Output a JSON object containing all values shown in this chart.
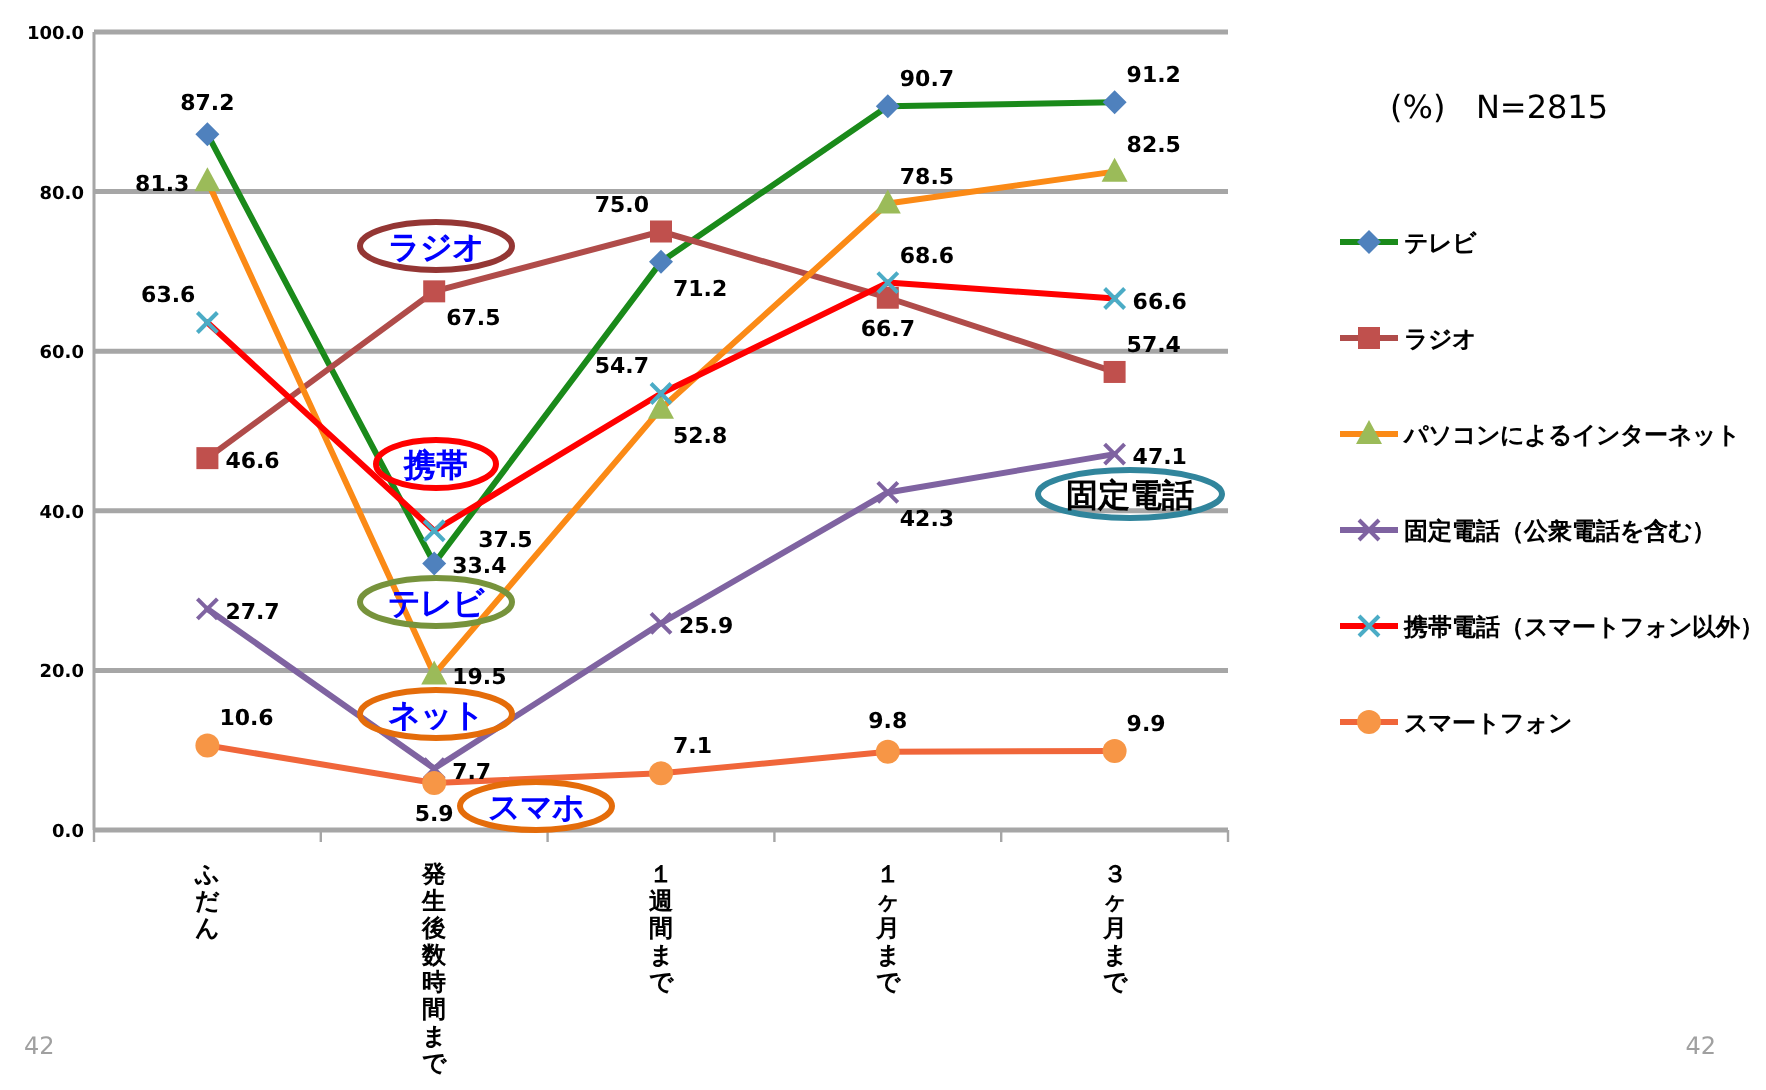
{
  "chart_data": {
    "type": "line",
    "categories": [
      "ふだん",
      "発生後数時間まで",
      "１週間まで",
      "１ヶ月まで",
      "３ヶ月まで"
    ],
    "ylim": [
      0,
      100
    ],
    "yticks": [
      {
        "value": 0,
        "label": "0.0"
      },
      {
        "value": 20,
        "label": "20.0"
      },
      {
        "value": 40,
        "label": "40.0"
      },
      {
        "value": 60,
        "label": "60.0"
      },
      {
        "value": 80,
        "label": "80.0"
      },
      {
        "value": 100,
        "label": "100.0"
      }
    ],
    "grid": "y",
    "legend": "right",
    "series": [
      {
        "name": "テレビ",
        "color": "#1a8a1a",
        "colors": [
          "#4f81bd",
          "#4f81bd",
          "#4f81bd",
          "#4f81bd",
          "#4f81bd"
        ],
        "marker": "diamond",
        "values": [
          87.2,
          33.4,
          71.2,
          90.7,
          91.2
        ],
        "value_labels": [
          "87.2",
          "33.4",
          "71.2",
          "90.7",
          "91.2"
        ]
      },
      {
        "name": "ラジオ",
        "color": "#b04c4a",
        "colors": [
          "#c0504d",
          "#c0504d",
          "#c0504d",
          "#c0504d",
          "#c0504d"
        ],
        "marker": "square",
        "values": [
          46.6,
          67.5,
          75.0,
          66.7,
          57.4
        ],
        "value_labels": [
          "46.6",
          "67.5",
          "75.0",
          "66.7",
          "57.4"
        ]
      },
      {
        "name": "パソコンによるインターネット",
        "color": "#fb8a16",
        "colors": [
          "#9bbb59",
          "#9bbb59",
          "#9bbb59",
          "#9bbb59",
          "#9bbb59"
        ],
        "marker": "triangle",
        "values": [
          81.3,
          19.5,
          52.8,
          78.5,
          82.5
        ],
        "value_labels": [
          "81.3",
          "19.5",
          "52.8",
          "78.5",
          "82.5"
        ]
      },
      {
        "name": "固定電話（公衆電話を含む）",
        "color": "#7f63a1",
        "colors": [
          "#7f63a1",
          "#7f63a1",
          "#7f63a1",
          "#7f63a1",
          "#7f63a1"
        ],
        "marker": "cross",
        "values": [
          27.7,
          7.7,
          25.9,
          42.3,
          47.1
        ],
        "value_labels": [
          "27.7",
          "7.7",
          "25.9",
          "42.3",
          "47.1"
        ]
      },
      {
        "name": "携帯電話（スマートフォン以外）",
        "color": "#ff0000",
        "colors": [
          "#4bacc6",
          "#4bacc6",
          "#4bacc6",
          "#4bacc6",
          "#4bacc6"
        ],
        "marker": "cross",
        "values": [
          63.6,
          37.5,
          54.7,
          68.6,
          66.6
        ],
        "value_labels": [
          "63.6",
          "37.5",
          "54.7",
          "68.6",
          "66.6"
        ]
      },
      {
        "name": "スマートフォン",
        "color": "#f0663a",
        "colors": [
          "#f79646",
          "#f79646",
          "#f79646",
          "#f79646",
          "#f79646"
        ],
        "marker": "circle",
        "values": [
          10.6,
          5.9,
          7.1,
          9.8,
          9.9
        ],
        "value_labels": [
          "10.6",
          "5.9",
          "7.1",
          "9.8",
          "9.9"
        ]
      }
    ],
    "annotations": [
      "(%)   N=2815",
      "ラジオ",
      "携帯",
      "テレビ",
      "ネット",
      "スマホ",
      "固定電話",
      "42",
      "42"
    ]
  }
}
